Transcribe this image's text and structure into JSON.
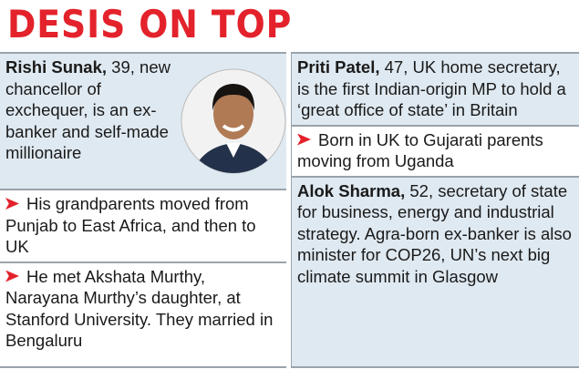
{
  "title": "DESIS ON TOP",
  "left": {
    "name": "Rishi Sunak,",
    "intro": " 39, new chancellor of exchequer, is an ex-banker and self-made millionaire",
    "bullets": [
      "His grandparents moved from Punjab to East Africa, and then to UK",
      "He met Akshata Murthy, Narayana Murthy’s daughter, at Stanford University. They married in Bengaluru"
    ]
  },
  "right": [
    {
      "name": "Priti Patel,",
      "intro": " 47, UK home secretary, is the first Indian-origin MP to hold a ‘great office of state’ in Britain",
      "bullets": [
        "Born in UK to Gujarati parents moving from Uganda"
      ]
    },
    {
      "name": "Alok Sharma,",
      "intro": " 52, secretary of state for business, energy and industrial strategy. Agra-born ex-banker is also minister for COP26, UN’s next big climate summit in Glasgow",
      "bullets": []
    }
  ]
}
